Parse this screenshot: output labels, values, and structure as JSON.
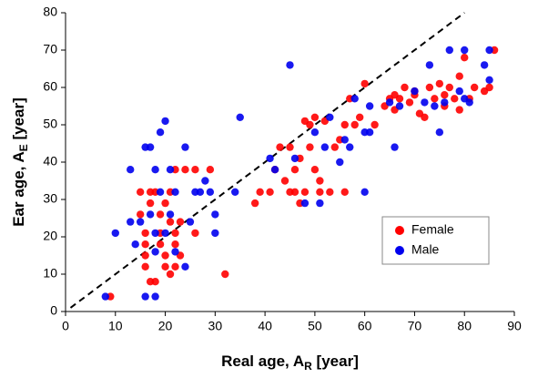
{
  "chart_data": {
    "type": "scatter",
    "x_label": {
      "text": "Real age, A",
      "sub": "R",
      "suffix": " [year]"
    },
    "y_label": {
      "text": "Ear age, A",
      "sub": "E",
      "suffix": " [year]"
    },
    "xlim": [
      0,
      90
    ],
    "xticks": [
      0,
      10,
      20,
      30,
      40,
      50,
      60,
      70,
      80,
      90
    ],
    "ylim": [
      0,
      80
    ],
    "yticks": [
      0,
      10,
      20,
      30,
      40,
      50,
      60,
      70,
      80
    ],
    "grid": false,
    "legend": "lower right",
    "diagonal": {
      "x": [
        1,
        80
      ],
      "y": [
        1,
        80
      ]
    },
    "series": [
      {
        "name": "Female",
        "color": "#ff0000",
        "x": [
          9,
          15,
          15,
          16,
          16,
          16,
          16,
          17,
          18,
          17,
          17,
          18,
          19,
          19,
          19,
          20,
          20,
          21,
          20,
          21,
          21,
          22,
          22,
          22,
          23,
          23,
          24,
          22,
          26,
          26,
          29,
          32,
          38,
          39,
          41,
          42,
          43,
          44,
          45,
          45,
          46,
          46,
          47,
          47,
          48,
          48,
          49,
          49,
          50,
          50,
          51,
          51,
          52,
          53,
          54,
          55,
          56,
          56,
          57,
          58,
          59,
          60,
          62,
          64,
          65,
          66,
          67,
          68,
          69,
          70,
          71,
          72,
          73,
          74,
          75,
          76,
          77,
          78,
          79,
          79,
          80,
          81,
          82,
          84,
          85,
          86,
          66,
          70,
          76
        ],
        "values": [
          4,
          32,
          26,
          21,
          18,
          15,
          12,
          8,
          8,
          29,
          32,
          32,
          26,
          21,
          18,
          15,
          12,
          10,
          29,
          32,
          24,
          21,
          18,
          12,
          15,
          24,
          38,
          38,
          38,
          21,
          38,
          10,
          29,
          32,
          32,
          38,
          44,
          35,
          32,
          44,
          38,
          32,
          29,
          41,
          51,
          32,
          50,
          44,
          52,
          38,
          35,
          32,
          51,
          32,
          44,
          46,
          50,
          32,
          57,
          50,
          52,
          61,
          50,
          55,
          57,
          54,
          57,
          60,
          56,
          59,
          53,
          52,
          60,
          57,
          61,
          58,
          60,
          57,
          54,
          63,
          68,
          57,
          60,
          59,
          60,
          70,
          58,
          58,
          55
        ]
      },
      {
        "name": "Male",
        "color": "#0000ee",
        "x": [
          8,
          10,
          13,
          13,
          14,
          15,
          16,
          16,
          17,
          17,
          18,
          18,
          18,
          18,
          19,
          19,
          20,
          20,
          21,
          21,
          22,
          22,
          24,
          24,
          25,
          26,
          27,
          28,
          29,
          30,
          30,
          34,
          35,
          41,
          42,
          45,
          46,
          48,
          50,
          51,
          52,
          53,
          55,
          56,
          57,
          58,
          60,
          60,
          61,
          61,
          65,
          66,
          67,
          70,
          72,
          73,
          74,
          75,
          76,
          77,
          79,
          80,
          80,
          81,
          84,
          85,
          85
        ],
        "values": [
          4,
          21,
          38,
          24,
          18,
          24,
          44,
          4,
          44,
          26,
          4,
          21,
          16,
          38,
          48,
          32,
          51,
          21,
          38,
          26,
          32,
          16,
          44,
          12,
          24,
          32,
          32,
          35,
          32,
          21,
          26,
          32,
          52,
          41,
          38,
          66,
          41,
          29,
          48,
          29,
          44,
          52,
          40,
          46,
          44,
          57,
          32,
          48,
          48,
          55,
          56,
          44,
          55,
          59,
          56,
          66,
          55,
          48,
          56,
          70,
          59,
          70,
          57,
          56,
          66,
          62,
          70
        ]
      }
    ]
  }
}
